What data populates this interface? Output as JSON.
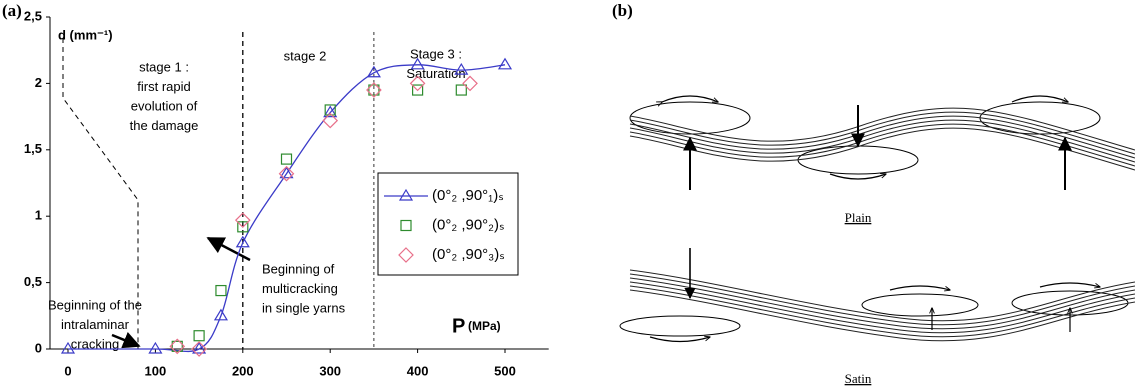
{
  "panel_labels": [
    "(a)",
    "(b)"
  ],
  "chart_data": {
    "type": "scatter",
    "y_label": "d (mm⁻¹)",
    "x_label": "P",
    "x_unit": "(MPa)",
    "xlim": [
      0,
      550
    ],
    "ylim": [
      0,
      2.5
    ],
    "xticks": [
      0,
      100,
      200,
      300,
      400,
      500
    ],
    "yticks": [
      0,
      {
        "value": 0.5,
        "label": "0,5"
      },
      1,
      {
        "value": 1.5,
        "label": "1,5"
      },
      2,
      {
        "value": 2.5,
        "label": "2,5"
      }
    ],
    "stage_lines": [
      200,
      350
    ],
    "annotations": [
      [
        "stage 1 :",
        "first rapid",
        "evolution of",
        "the damage"
      ],
      [
        "stage 2"
      ],
      [
        "Stage 3 :",
        "Saturation"
      ],
      [
        "Beginning of the",
        "intralaminar",
        "cracking"
      ],
      [
        "Beginning of",
        "multicracking",
        "in single yarns"
      ]
    ],
    "series": [
      {
        "name": "(0°₂ ,90°₁)ₛ",
        "color": "#3b3bc8",
        "marker": "triangle",
        "line": true,
        "x": [
          0,
          100,
          150,
          175,
          200,
          250,
          300,
          350,
          400,
          450,
          500
        ],
        "values": [
          0,
          0,
          0,
          0.25,
          0.8,
          1.32,
          1.78,
          2.08,
          2.14,
          2.1,
          2.14
        ]
      },
      {
        "name": "(0°₂ ,90°₂)ₛ",
        "color": "#2e8b2e",
        "marker": "square",
        "line": false,
        "x": [
          125,
          150,
          175,
          200,
          250,
          300,
          350,
          400,
          450
        ],
        "values": [
          0.02,
          0.1,
          0.44,
          0.92,
          1.43,
          1.8,
          1.95,
          1.95,
          1.95
        ]
      },
      {
        "name": "(0°₂ ,90°₃)ₛ",
        "color": "#e8708a",
        "marker": "diamond",
        "line": false,
        "x": [
          125,
          150,
          200,
          250,
          300,
          350,
          400,
          460
        ],
        "values": [
          0.02,
          0,
          0.97,
          1.32,
          1.72,
          1.95,
          2.0,
          2.0
        ]
      }
    ]
  },
  "diagram": {
    "labels": [
      "Plain",
      "Satin"
    ]
  }
}
